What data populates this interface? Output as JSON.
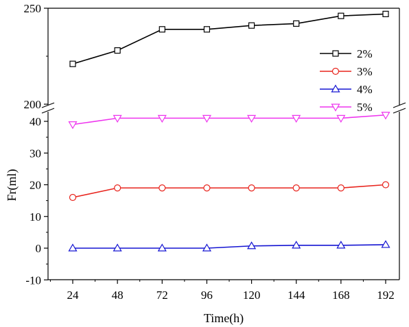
{
  "chart_data": {
    "type": "line",
    "xlabel": "Time(h)",
    "ylabel": "Fr(ml)",
    "x": [
      24,
      48,
      72,
      96,
      120,
      144,
      168,
      192
    ],
    "x_ticks": [
      "24",
      "48",
      "72",
      "96",
      "120",
      "144",
      "168",
      "192"
    ],
    "y_ticks_lower": [
      "-10",
      "0",
      "10",
      "20",
      "30",
      "40"
    ],
    "y_ticks_upper": [
      "200",
      "250"
    ],
    "axis_break": true,
    "ylim_lower": [
      -10,
      42
    ],
    "ylim_upper": [
      200,
      250
    ],
    "legend_position": "right-middle",
    "series": [
      {
        "name": "2%",
        "color": "#000000",
        "marker": "square",
        "values": [
          221,
          228,
          239,
          239,
          241,
          242,
          246,
          247
        ]
      },
      {
        "name": "3%",
        "color": "#e8231c",
        "marker": "circle",
        "values": [
          16,
          19,
          19,
          19,
          19,
          19,
          19,
          20
        ]
      },
      {
        "name": "4%",
        "color": "#1414d2",
        "marker": "triangle-up",
        "values": [
          0,
          0,
          0,
          0,
          0.7,
          0.9,
          0.9,
          1.1
        ]
      },
      {
        "name": "5%",
        "color": "#ee33ee",
        "marker": "triangle-down",
        "values": [
          39,
          41,
          41,
          41,
          41,
          41,
          41,
          42
        ]
      }
    ]
  }
}
